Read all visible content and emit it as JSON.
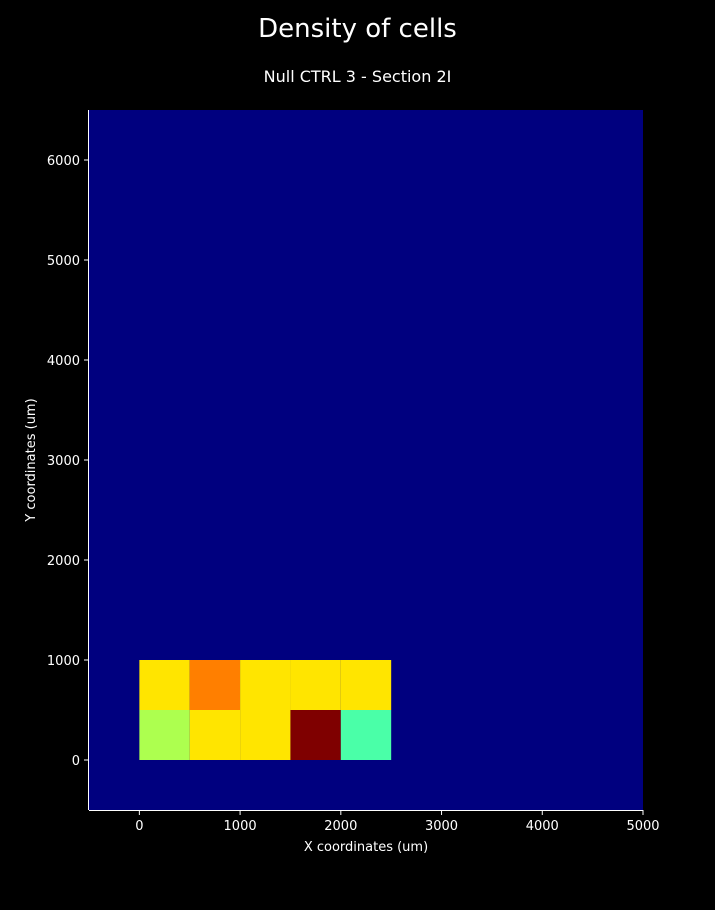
{
  "suptitle": "Density of cells",
  "chart_data": {
    "type": "heatmap",
    "title": "Null CTRL 3 - Section 2I",
    "xlabel": "X coordinates (um)",
    "ylabel": "Y coordinates (um)",
    "xlim": [
      -500,
      5000
    ],
    "ylim": [
      -500,
      6500
    ],
    "xticks": [
      0,
      1000,
      2000,
      3000,
      4000,
      5000
    ],
    "yticks": [
      0,
      1000,
      2000,
      3000,
      4000,
      5000,
      6000
    ],
    "background_color": "#00007f",
    "cell_size": 500,
    "cells": [
      {
        "x": 0,
        "y": 0,
        "color": "#adff4f"
      },
      {
        "x": 500,
        "y": 0,
        "color": "#ffe500"
      },
      {
        "x": 1000,
        "y": 0,
        "color": "#ffe500"
      },
      {
        "x": 1500,
        "y": 0,
        "color": "#7f0000"
      },
      {
        "x": 2000,
        "y": 0,
        "color": "#4affa8"
      },
      {
        "x": 0,
        "y": 500,
        "color": "#ffe500"
      },
      {
        "x": 500,
        "y": 500,
        "color": "#ff7f00"
      },
      {
        "x": 1000,
        "y": 500,
        "color": "#ffe500"
      },
      {
        "x": 1500,
        "y": 500,
        "color": "#ffe500"
      },
      {
        "x": 2000,
        "y": 500,
        "color": "#ffe500"
      }
    ]
  }
}
